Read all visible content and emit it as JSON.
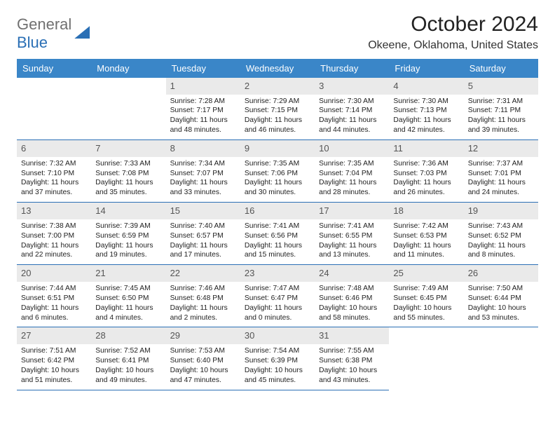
{
  "logo": {
    "word1": "General",
    "word2": "Blue"
  },
  "title": "October 2024",
  "location": "Okeene, Oklahoma, United States",
  "colors": {
    "accent": "#3a86c8",
    "rule": "#2a6fb5",
    "daynum_bg": "#eaeaea"
  },
  "weekdays": [
    "Sunday",
    "Monday",
    "Tuesday",
    "Wednesday",
    "Thursday",
    "Friday",
    "Saturday"
  ],
  "leading_blanks": 2,
  "days": [
    {
      "n": "1",
      "sr": "Sunrise: 7:28 AM",
      "ss": "Sunset: 7:17 PM",
      "d1": "Daylight: 11 hours",
      "d2": "and 48 minutes."
    },
    {
      "n": "2",
      "sr": "Sunrise: 7:29 AM",
      "ss": "Sunset: 7:15 PM",
      "d1": "Daylight: 11 hours",
      "d2": "and 46 minutes."
    },
    {
      "n": "3",
      "sr": "Sunrise: 7:30 AM",
      "ss": "Sunset: 7:14 PM",
      "d1": "Daylight: 11 hours",
      "d2": "and 44 minutes."
    },
    {
      "n": "4",
      "sr": "Sunrise: 7:30 AM",
      "ss": "Sunset: 7:13 PM",
      "d1": "Daylight: 11 hours",
      "d2": "and 42 minutes."
    },
    {
      "n": "5",
      "sr": "Sunrise: 7:31 AM",
      "ss": "Sunset: 7:11 PM",
      "d1": "Daylight: 11 hours",
      "d2": "and 39 minutes."
    },
    {
      "n": "6",
      "sr": "Sunrise: 7:32 AM",
      "ss": "Sunset: 7:10 PM",
      "d1": "Daylight: 11 hours",
      "d2": "and 37 minutes."
    },
    {
      "n": "7",
      "sr": "Sunrise: 7:33 AM",
      "ss": "Sunset: 7:08 PM",
      "d1": "Daylight: 11 hours",
      "d2": "and 35 minutes."
    },
    {
      "n": "8",
      "sr": "Sunrise: 7:34 AM",
      "ss": "Sunset: 7:07 PM",
      "d1": "Daylight: 11 hours",
      "d2": "and 33 minutes."
    },
    {
      "n": "9",
      "sr": "Sunrise: 7:35 AM",
      "ss": "Sunset: 7:06 PM",
      "d1": "Daylight: 11 hours",
      "d2": "and 30 minutes."
    },
    {
      "n": "10",
      "sr": "Sunrise: 7:35 AM",
      "ss": "Sunset: 7:04 PM",
      "d1": "Daylight: 11 hours",
      "d2": "and 28 minutes."
    },
    {
      "n": "11",
      "sr": "Sunrise: 7:36 AM",
      "ss": "Sunset: 7:03 PM",
      "d1": "Daylight: 11 hours",
      "d2": "and 26 minutes."
    },
    {
      "n": "12",
      "sr": "Sunrise: 7:37 AM",
      "ss": "Sunset: 7:01 PM",
      "d1": "Daylight: 11 hours",
      "d2": "and 24 minutes."
    },
    {
      "n": "13",
      "sr": "Sunrise: 7:38 AM",
      "ss": "Sunset: 7:00 PM",
      "d1": "Daylight: 11 hours",
      "d2": "and 22 minutes."
    },
    {
      "n": "14",
      "sr": "Sunrise: 7:39 AM",
      "ss": "Sunset: 6:59 PM",
      "d1": "Daylight: 11 hours",
      "d2": "and 19 minutes."
    },
    {
      "n": "15",
      "sr": "Sunrise: 7:40 AM",
      "ss": "Sunset: 6:57 PM",
      "d1": "Daylight: 11 hours",
      "d2": "and 17 minutes."
    },
    {
      "n": "16",
      "sr": "Sunrise: 7:41 AM",
      "ss": "Sunset: 6:56 PM",
      "d1": "Daylight: 11 hours",
      "d2": "and 15 minutes."
    },
    {
      "n": "17",
      "sr": "Sunrise: 7:41 AM",
      "ss": "Sunset: 6:55 PM",
      "d1": "Daylight: 11 hours",
      "d2": "and 13 minutes."
    },
    {
      "n": "18",
      "sr": "Sunrise: 7:42 AM",
      "ss": "Sunset: 6:53 PM",
      "d1": "Daylight: 11 hours",
      "d2": "and 11 minutes."
    },
    {
      "n": "19",
      "sr": "Sunrise: 7:43 AM",
      "ss": "Sunset: 6:52 PM",
      "d1": "Daylight: 11 hours",
      "d2": "and 8 minutes."
    },
    {
      "n": "20",
      "sr": "Sunrise: 7:44 AM",
      "ss": "Sunset: 6:51 PM",
      "d1": "Daylight: 11 hours",
      "d2": "and 6 minutes."
    },
    {
      "n": "21",
      "sr": "Sunrise: 7:45 AM",
      "ss": "Sunset: 6:50 PM",
      "d1": "Daylight: 11 hours",
      "d2": "and 4 minutes."
    },
    {
      "n": "22",
      "sr": "Sunrise: 7:46 AM",
      "ss": "Sunset: 6:48 PM",
      "d1": "Daylight: 11 hours",
      "d2": "and 2 minutes."
    },
    {
      "n": "23",
      "sr": "Sunrise: 7:47 AM",
      "ss": "Sunset: 6:47 PM",
      "d1": "Daylight: 11 hours",
      "d2": "and 0 minutes."
    },
    {
      "n": "24",
      "sr": "Sunrise: 7:48 AM",
      "ss": "Sunset: 6:46 PM",
      "d1": "Daylight: 10 hours",
      "d2": "and 58 minutes."
    },
    {
      "n": "25",
      "sr": "Sunrise: 7:49 AM",
      "ss": "Sunset: 6:45 PM",
      "d1": "Daylight: 10 hours",
      "d2": "and 55 minutes."
    },
    {
      "n": "26",
      "sr": "Sunrise: 7:50 AM",
      "ss": "Sunset: 6:44 PM",
      "d1": "Daylight: 10 hours",
      "d2": "and 53 minutes."
    },
    {
      "n": "27",
      "sr": "Sunrise: 7:51 AM",
      "ss": "Sunset: 6:42 PM",
      "d1": "Daylight: 10 hours",
      "d2": "and 51 minutes."
    },
    {
      "n": "28",
      "sr": "Sunrise: 7:52 AM",
      "ss": "Sunset: 6:41 PM",
      "d1": "Daylight: 10 hours",
      "d2": "and 49 minutes."
    },
    {
      "n": "29",
      "sr": "Sunrise: 7:53 AM",
      "ss": "Sunset: 6:40 PM",
      "d1": "Daylight: 10 hours",
      "d2": "and 47 minutes."
    },
    {
      "n": "30",
      "sr": "Sunrise: 7:54 AM",
      "ss": "Sunset: 6:39 PM",
      "d1": "Daylight: 10 hours",
      "d2": "and 45 minutes."
    },
    {
      "n": "31",
      "sr": "Sunrise: 7:55 AM",
      "ss": "Sunset: 6:38 PM",
      "d1": "Daylight: 10 hours",
      "d2": "and 43 minutes."
    }
  ]
}
